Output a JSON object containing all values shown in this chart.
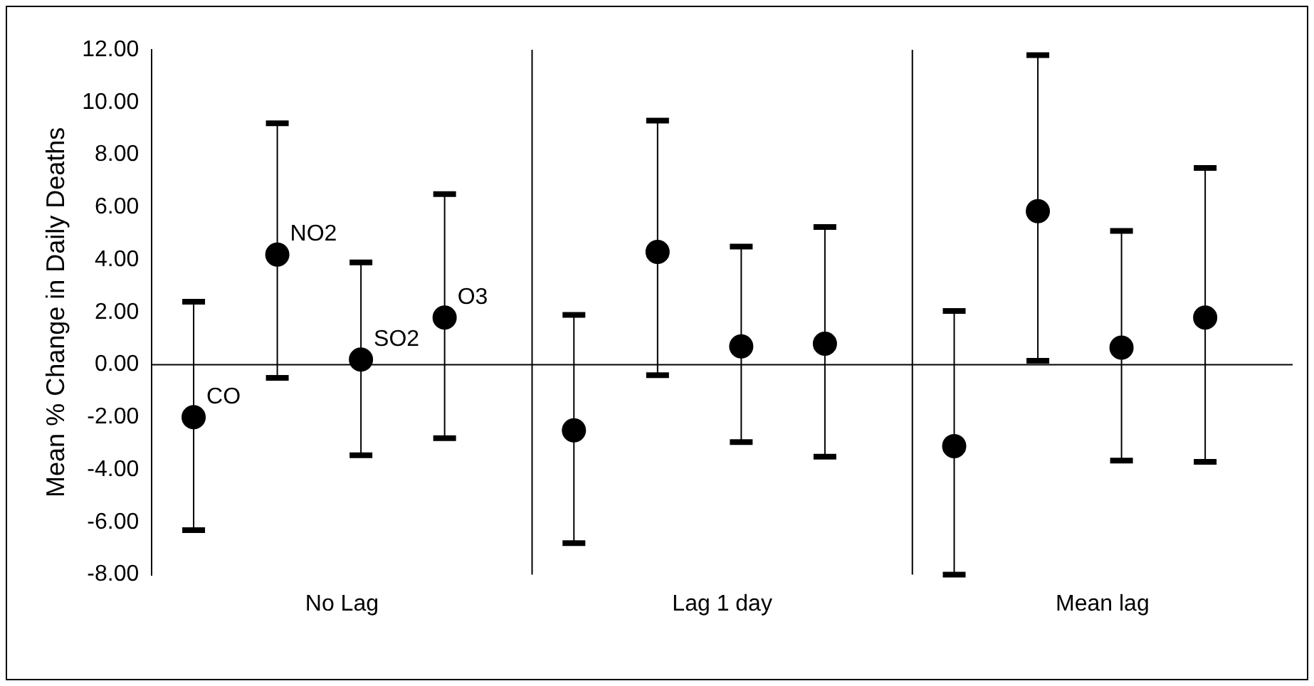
{
  "chart_data": {
    "type": "scatter",
    "ylabel": "Mean % Change in Daily Deaths",
    "categories": [
      "No Lag",
      "Lag 1 day",
      "Mean lag"
    ],
    "series": [
      {
        "name": "CO",
        "color": "#000000",
        "values": [
          -2.0,
          -2.5,
          -3.1
        ],
        "errors": [
          [
            -6.3,
            2.4
          ],
          [
            -6.8,
            1.9
          ],
          [
            -8.0,
            2.05
          ]
        ]
      },
      {
        "name": "NO2",
        "color": "#000000",
        "values": [
          4.2,
          4.3,
          5.85
        ],
        "errors": [
          [
            -0.5,
            9.2
          ],
          [
            -0.4,
            9.3
          ],
          [
            0.15,
            11.8
          ]
        ]
      },
      {
        "name": "SO2",
        "color": "#000000",
        "values": [
          0.2,
          0.7,
          0.65
        ],
        "errors": [
          [
            -3.45,
            3.9
          ],
          [
            -2.95,
            4.5
          ],
          [
            -3.65,
            5.1
          ]
        ]
      },
      {
        "name": "O3",
        "color": "#000000",
        "values": [
          1.8,
          0.8,
          1.8
        ],
        "errors": [
          [
            -2.8,
            6.5
          ],
          [
            -3.5,
            5.25
          ],
          [
            -3.7,
            7.5
          ]
        ]
      }
    ],
    "ylim": [
      -8,
      12
    ],
    "yticks": [
      {
        "value": -8,
        "label": "-8.00"
      },
      {
        "value": -6,
        "label": "-6.00"
      },
      {
        "value": -4,
        "label": "-4.00"
      },
      {
        "value": -2,
        "label": "-2.00"
      },
      {
        "value": 0,
        "label": "0.00"
      },
      {
        "value": 2,
        "label": "2.00"
      },
      {
        "value": 4,
        "label": "4.00"
      },
      {
        "value": 6,
        "label": "6.00"
      },
      {
        "value": 8,
        "label": "8.00"
      },
      {
        "value": 10,
        "label": "10.00"
      },
      {
        "value": 12,
        "label": "12.00"
      }
    ],
    "ref_lines": [
      {
        "axis": "y",
        "value": 0,
        "color": "#000000"
      }
    ],
    "grid": "x",
    "legend": false,
    "marker": "circle"
  }
}
